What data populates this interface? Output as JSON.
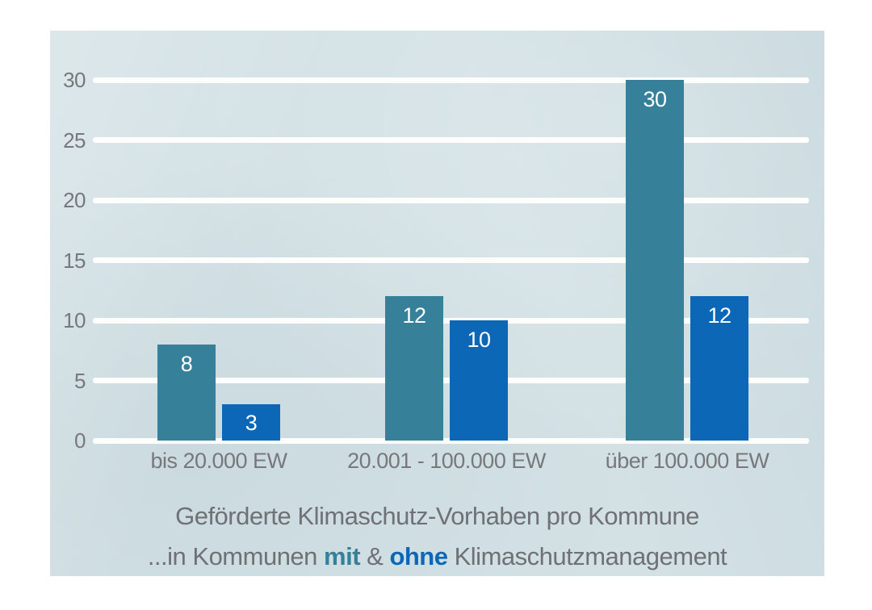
{
  "colors": {
    "page_bg": "#ffffff",
    "card_bg": "#d3e1e5",
    "gridline": "#fdfdfc",
    "axis_text": "#77787b",
    "title_text": "#6f7175",
    "bar_value_text": "#ffffff",
    "teal": "#36809a",
    "blue": "#0c68b6"
  },
  "chart_data": {
    "type": "bar",
    "title": "Geförderte Klimaschutz-Vorhaben pro Kommune",
    "subtitle_parts": [
      {
        "text": "...in Kommunen ",
        "style": "normal"
      },
      {
        "text": "mit",
        "style": "teal-bold"
      },
      {
        "text": " & ",
        "style": "normal"
      },
      {
        "text": "ohne",
        "style": "blue-bold"
      },
      {
        "text": " Klimaschutzmanagement",
        "style": "normal"
      }
    ],
    "categories": [
      "bis 20.000 EW",
      "20.001 - 100.000 EW",
      "über 100.000 EW"
    ],
    "series": [
      {
        "name": "mit Klimaschutzmanagement",
        "color": "#36809a",
        "values": [
          8,
          12,
          30
        ]
      },
      {
        "name": "ohne Klimaschutzmanagement",
        "color": "#0c68b6",
        "values": [
          3,
          10,
          12
        ]
      }
    ],
    "ylim": [
      0,
      30
    ],
    "yticks": [
      0,
      5,
      10,
      15,
      20,
      25,
      30
    ],
    "xlabel": "",
    "ylabel": "",
    "grid": true,
    "legend_position": "inline-subtitle"
  }
}
